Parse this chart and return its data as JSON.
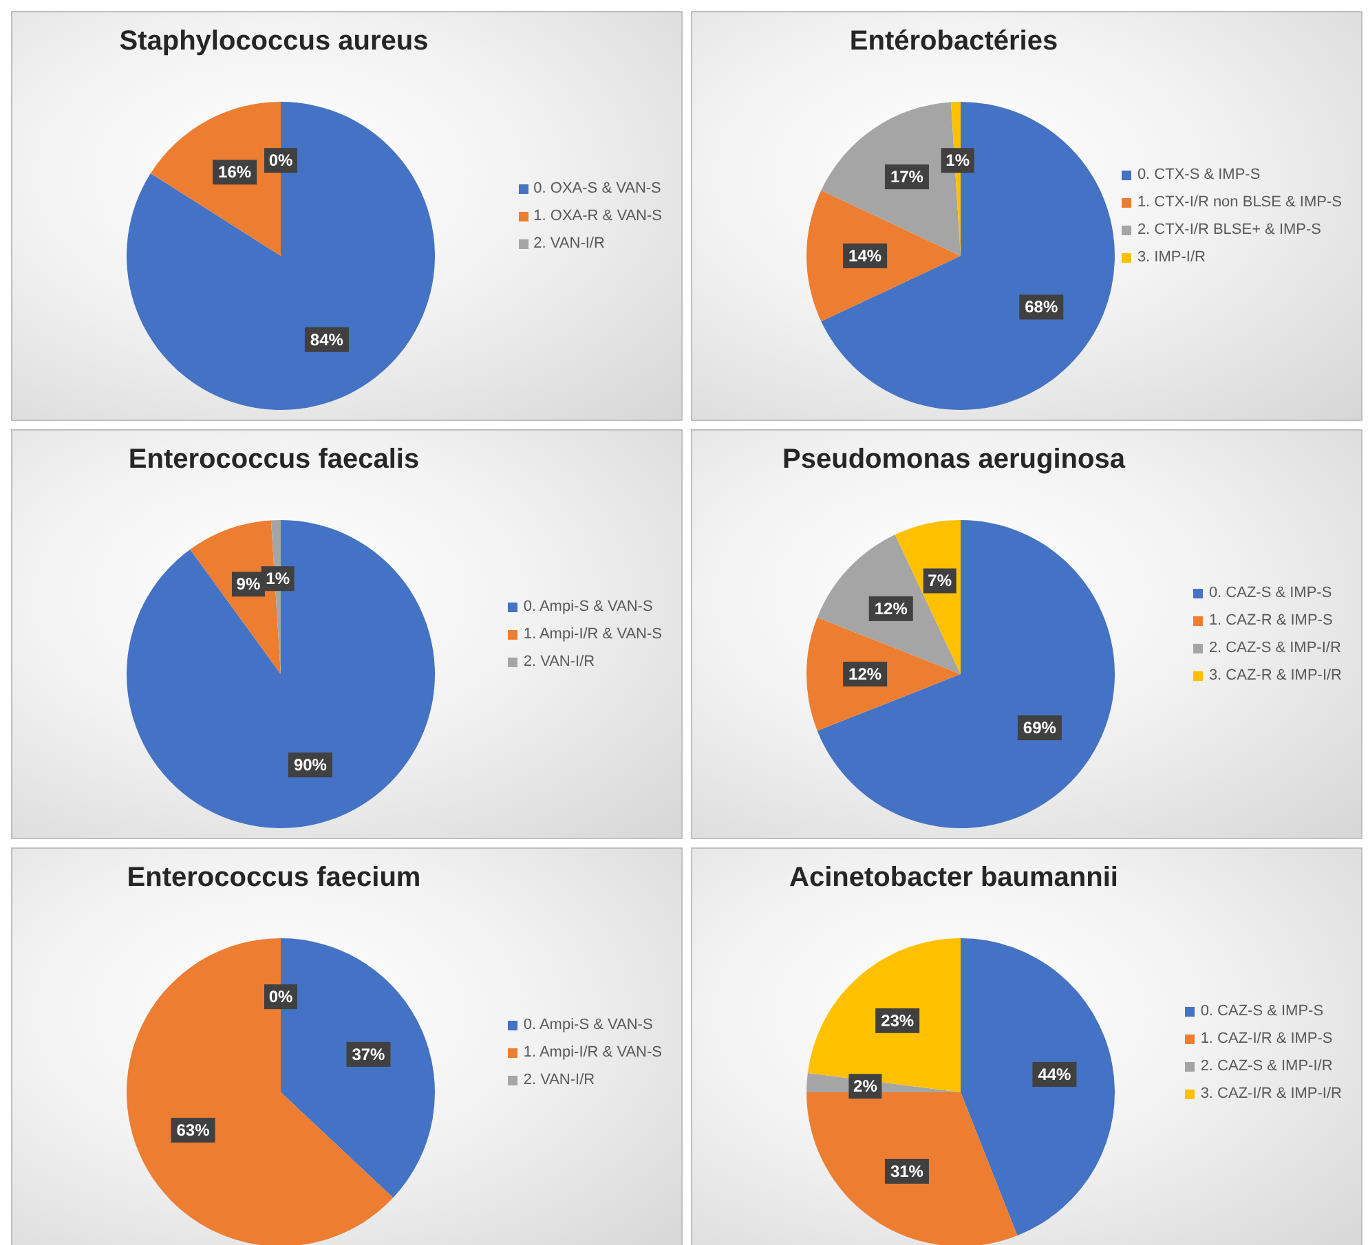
{
  "chart_data": [
    {
      "type": "pie",
      "title": "Staphylococcus aureus",
      "categories": [
        "0. OXA-S & VAN-S",
        "1. OXA-R & VAN-S",
        "2. VAN-I/R"
      ],
      "values": [
        84,
        16,
        0
      ],
      "value_labels": [
        "84%",
        "16%",
        "0%"
      ],
      "colors": [
        "#4472c4",
        "#ed7d31",
        "#a5a5a5"
      ],
      "legend": "right"
    },
    {
      "type": "pie",
      "title": "Entérobactéries",
      "categories": [
        "0. CTX-S & IMP-S",
        "1. CTX-I/R non BLSE & IMP-S",
        "2. CTX-I/R BLSE+ & IMP-S",
        "3. IMP-I/R"
      ],
      "values": [
        68,
        14,
        17,
        1
      ],
      "value_labels": [
        "68%",
        "14%",
        "17%",
        "1%"
      ],
      "colors": [
        "#4472c4",
        "#ed7d31",
        "#a5a5a5",
        "#ffc000"
      ],
      "legend": "right"
    },
    {
      "type": "pie",
      "title": "Enterococcus faecalis",
      "categories": [
        "0. Ampi-S & VAN-S",
        "1. Ampi-I/R & VAN-S",
        "2. VAN-I/R"
      ],
      "values": [
        90,
        9,
        1
      ],
      "value_labels": [
        "90%",
        "9%",
        "1%"
      ],
      "colors": [
        "#4472c4",
        "#ed7d31",
        "#a5a5a5"
      ],
      "legend": "right"
    },
    {
      "type": "pie",
      "title": "Pseudomonas aeruginosa",
      "categories": [
        "0. CAZ-S & IMP-S",
        "1. CAZ-R & IMP-S",
        "2. CAZ-S & IMP-I/R",
        "3. CAZ-R & IMP-I/R"
      ],
      "values": [
        69,
        12,
        12,
        7
      ],
      "value_labels": [
        "69%",
        "12%",
        "12%",
        "7%"
      ],
      "colors": [
        "#4472c4",
        "#ed7d31",
        "#a5a5a5",
        "#ffc000"
      ],
      "legend": "right"
    },
    {
      "type": "pie",
      "title": "Enterococcus faecium",
      "categories": [
        "0. Ampi-S & VAN-S",
        "1. Ampi-I/R & VAN-S",
        "2. VAN-I/R"
      ],
      "values": [
        37,
        63,
        0
      ],
      "value_labels": [
        "37%",
        "63%",
        "0%"
      ],
      "colors": [
        "#4472c4",
        "#ed7d31",
        "#a5a5a5"
      ],
      "legend": "right"
    },
    {
      "type": "pie",
      "title": "Acinetobacter baumannii",
      "categories": [
        "0. CAZ-S & IMP-S",
        "1. CAZ-I/R & IMP-S",
        "2. CAZ-S & IMP-I/R",
        "3. CAZ-I/R & IMP-I/R"
      ],
      "values": [
        44,
        31,
        2,
        23
      ],
      "value_labels": [
        "44%",
        "31%",
        "2%",
        "23%"
      ],
      "colors": [
        "#4472c4",
        "#ed7d31",
        "#a5a5a5",
        "#ffc000"
      ],
      "legend": "right"
    }
  ]
}
